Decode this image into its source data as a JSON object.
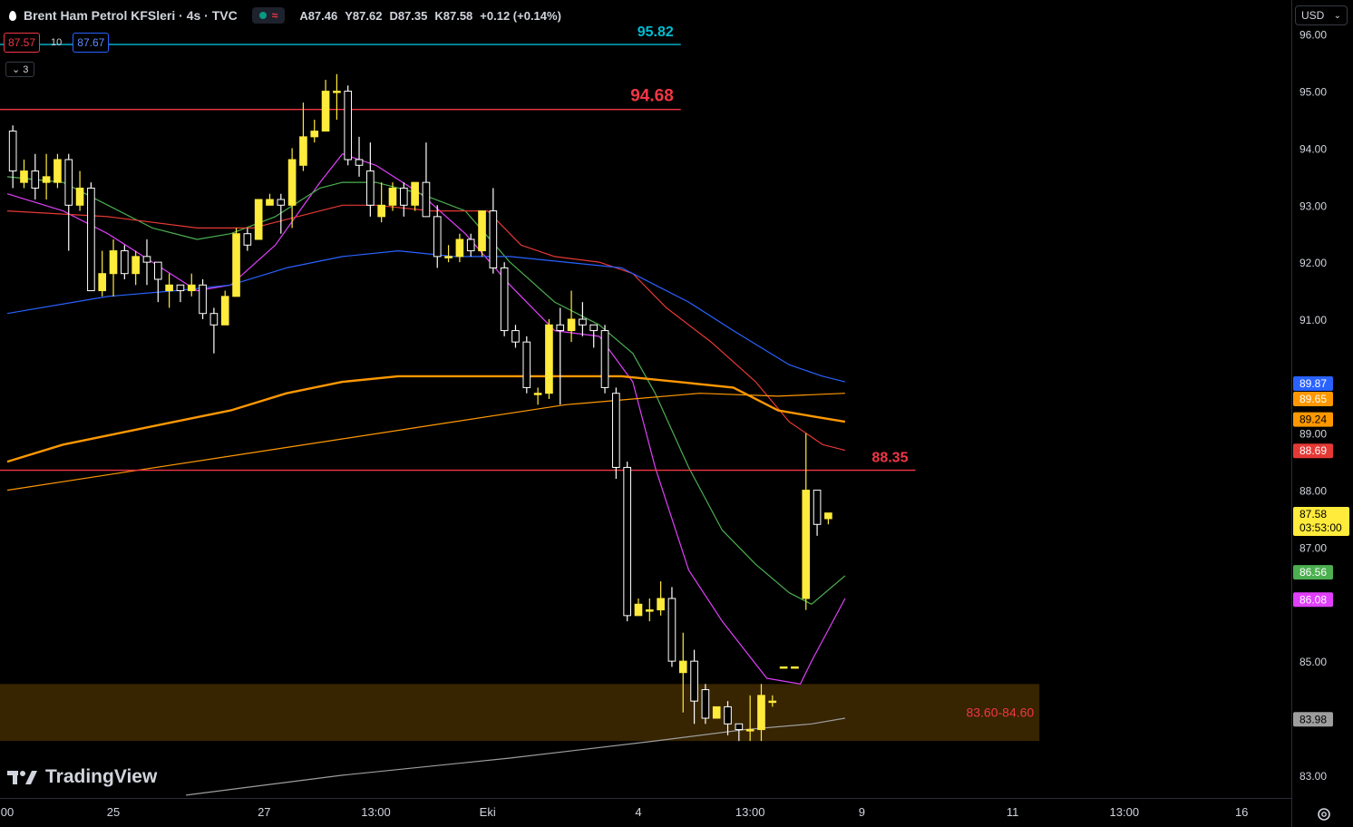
{
  "header": {
    "title": "Brent Ham Petrol KFSleri · 4s · TVC",
    "ohlc": [
      "A87.46",
      "Y87.62",
      "D87.35",
      "K87.58",
      "+0.12 (+0.14%)"
    ],
    "sell_price": "87.57",
    "quantity": "10",
    "buy_price": "87.67",
    "indicators_collapsed": "3",
    "currency": "USD"
  },
  "brand": {
    "name": "TradingView"
  },
  "colors": {
    "bull": "#ffeb3b",
    "bear": "#ffffff",
    "background": "#000000",
    "ma_magenta": "#e040fb",
    "ma_green": "#4caf50",
    "ma_red": "#e53935",
    "ma_blue": "#2962ff",
    "ma_orange": "#ff9800",
    "ma_gray": "#9e9e9e",
    "level_red": "#f23645",
    "level_cyan": "#00bcd4",
    "zone": "#3a2600"
  },
  "chart_data": {
    "type": "candlestick",
    "y_range": [
      82.6,
      96.6
    ],
    "y_ticks": [
      "96.00",
      "95.00",
      "94.00",
      "93.00",
      "92.00",
      "91.00",
      "89.00",
      "88.00",
      "87.00",
      "85.00",
      "83.00"
    ],
    "x_ticks": [
      {
        "label": "00",
        "i": 0.0
      },
      {
        "label": "25",
        "i": 9.5
      },
      {
        "label": "27",
        "i": 23.0
      },
      {
        "label": "13:00",
        "i": 33.0
      },
      {
        "label": "Eki",
        "i": 43.0
      },
      {
        "label": "4",
        "i": 56.5
      },
      {
        "label": "13:00",
        "i": 66.5
      },
      {
        "label": "9",
        "i": 76.5
      },
      {
        "label": "11",
        "i": 90.0
      },
      {
        "label": "13:00",
        "i": 100.0
      },
      {
        "label": "16",
        "i": 110.5
      }
    ],
    "x_range": [
      0,
      115.6
    ],
    "candles": [
      [
        94.3,
        93.6,
        94.4,
        93.3
      ],
      [
        93.4,
        93.6,
        93.8,
        93.3
      ],
      [
        93.6,
        93.3,
        93.9,
        93.1
      ],
      [
        93.4,
        93.5,
        93.9,
        93.1
      ],
      [
        93.4,
        93.8,
        93.9,
        93.3
      ],
      [
        93.8,
        93.0,
        93.9,
        92.2
      ],
      [
        93.0,
        93.3,
        93.6,
        92.9
      ],
      [
        93.3,
        91.5,
        93.4,
        91.5
      ],
      [
        91.5,
        91.8,
        92.2,
        91.4
      ],
      [
        91.8,
        92.2,
        92.4,
        91.4
      ],
      [
        92.2,
        91.8,
        92.3,
        91.7
      ],
      [
        91.8,
        92.1,
        92.2,
        91.6
      ],
      [
        92.1,
        92.0,
        92.4,
        91.6
      ],
      [
        92.0,
        91.7,
        92.0,
        91.3
      ],
      [
        91.5,
        91.6,
        91.8,
        91.2
      ],
      [
        91.6,
        91.5,
        91.6,
        91.3
      ],
      [
        91.5,
        91.6,
        91.8,
        91.4
      ],
      [
        91.6,
        91.1,
        91.7,
        91.0
      ],
      [
        91.1,
        90.9,
        91.2,
        90.4
      ],
      [
        90.9,
        91.4,
        91.5,
        91.0
      ],
      [
        91.4,
        92.5,
        92.6,
        91.4
      ],
      [
        92.5,
        92.3,
        92.6,
        92.2
      ],
      [
        92.4,
        93.1,
        93.1,
        92.4
      ],
      [
        93.0,
        93.1,
        93.2,
        93.0
      ],
      [
        93.1,
        93.0,
        93.2,
        92.5
      ],
      [
        93.0,
        93.8,
        94.0,
        92.6
      ],
      [
        93.7,
        94.2,
        94.8,
        93.6
      ],
      [
        94.2,
        94.3,
        94.5,
        94.1
      ],
      [
        94.3,
        95.0,
        95.2,
        94.4
      ],
      [
        95.0,
        95.0,
        95.3,
        94.5
      ],
      [
        95.0,
        93.8,
        95.1,
        93.7
      ],
      [
        93.8,
        93.7,
        94.2,
        93.5
      ],
      [
        93.6,
        93.0,
        94.1,
        92.8
      ],
      [
        92.8,
        93.0,
        93.4,
        92.7
      ],
      [
        93.0,
        93.3,
        93.4,
        92.9
      ],
      [
        93.3,
        93.0,
        93.4,
        92.8
      ],
      [
        93.0,
        93.4,
        93.4,
        92.9
      ],
      [
        93.4,
        92.8,
        94.1,
        92.8
      ],
      [
        92.8,
        92.1,
        93.0,
        91.9
      ],
      [
        92.1,
        92.1,
        92.3,
        92.0
      ],
      [
        92.1,
        92.4,
        92.5,
        92.0
      ],
      [
        92.4,
        92.2,
        92.5,
        92.1
      ],
      [
        92.2,
        92.9,
        92.9,
        92.1
      ],
      [
        92.9,
        91.9,
        93.3,
        91.8
      ],
      [
        91.9,
        90.8,
        92.0,
        90.7
      ],
      [
        90.8,
        90.6,
        90.9,
        90.5
      ],
      [
        90.6,
        89.8,
        90.7,
        89.7
      ],
      [
        89.7,
        89.7,
        89.8,
        89.5
      ],
      [
        89.7,
        90.9,
        91.0,
        89.6
      ],
      [
        90.9,
        90.8,
        91.2,
        89.5
      ],
      [
        90.8,
        91.0,
        91.5,
        90.6
      ],
      [
        91.0,
        90.9,
        91.3,
        90.7
      ],
      [
        90.9,
        90.8,
        90.9,
        90.5
      ],
      [
        90.8,
        89.8,
        90.9,
        89.7
      ],
      [
        89.7,
        88.4,
        89.8,
        88.2
      ],
      [
        88.4,
        85.8,
        88.5,
        85.7
      ],
      [
        85.8,
        86.0,
        86.1,
        85.8
      ],
      [
        85.9,
        85.9,
        86.1,
        85.7
      ],
      [
        85.9,
        86.1,
        86.4,
        85.8
      ],
      [
        86.1,
        85.0,
        86.3,
        84.9
      ],
      [
        84.8,
        85.0,
        85.5,
        84.1
      ],
      [
        85.0,
        84.3,
        85.2,
        83.9
      ],
      [
        84.5,
        84.0,
        84.6,
        83.9
      ],
      [
        84.0,
        84.2,
        84.2,
        84.0
      ],
      [
        84.2,
        83.9,
        84.3,
        83.7
      ],
      [
        83.9,
        83.8,
        83.9,
        83.6
      ],
      [
        83.8,
        83.8,
        84.4,
        83.6
      ],
      [
        83.8,
        84.4,
        84.6,
        83.6
      ],
      [
        84.3,
        84.3,
        84.4,
        84.2
      ],
      [
        84.9,
        84.9,
        84.9,
        84.9
      ],
      [
        84.9,
        84.9,
        84.9,
        84.9
      ],
      [
        86.1,
        88.0,
        89.0,
        85.9
      ],
      [
        88.0,
        87.4,
        88.0,
        87.2
      ],
      [
        87.5,
        87.6,
        87.6,
        87.4
      ]
    ],
    "moving_averages": [
      {
        "color_key": "ma_magenta",
        "width": 1.2,
        "points": [
          [
            0,
            93.2
          ],
          [
            5,
            92.9
          ],
          [
            9,
            92.5
          ],
          [
            13,
            92.0
          ],
          [
            17,
            91.5
          ],
          [
            20,
            91.6
          ],
          [
            24,
            92.3
          ],
          [
            28,
            93.4
          ],
          [
            30,
            93.9
          ],
          [
            33,
            93.7
          ],
          [
            37,
            93.2
          ],
          [
            41,
            92.5
          ],
          [
            45,
            91.6
          ],
          [
            49,
            90.8
          ],
          [
            53,
            90.7
          ],
          [
            56,
            89.9
          ],
          [
            58,
            88.4
          ],
          [
            61,
            86.6
          ],
          [
            64,
            85.7
          ],
          [
            68,
            84.7
          ],
          [
            71,
            84.6
          ],
          [
            72,
            85.0
          ],
          [
            75,
            86.1
          ]
        ]
      },
      {
        "color_key": "ma_green",
        "width": 1.2,
        "points": [
          [
            0,
            93.5
          ],
          [
            5,
            93.4
          ],
          [
            9,
            93.0
          ],
          [
            13,
            92.6
          ],
          [
            17,
            92.4
          ],
          [
            20,
            92.5
          ],
          [
            24,
            92.8
          ],
          [
            28,
            93.3
          ],
          [
            30,
            93.4
          ],
          [
            33,
            93.4
          ],
          [
            37,
            93.2
          ],
          [
            41,
            92.9
          ],
          [
            45,
            92.0
          ],
          [
            49,
            91.3
          ],
          [
            53,
            90.9
          ],
          [
            56,
            90.4
          ],
          [
            58,
            89.7
          ],
          [
            61,
            88.4
          ],
          [
            64,
            87.3
          ],
          [
            67,
            86.7
          ],
          [
            70,
            86.2
          ],
          [
            72,
            86.0
          ],
          [
            75,
            86.5
          ]
        ]
      },
      {
        "color_key": "ma_red",
        "width": 1.2,
        "points": [
          [
            0,
            92.9
          ],
          [
            9,
            92.8
          ],
          [
            17,
            92.6
          ],
          [
            22,
            92.6
          ],
          [
            28,
            92.9
          ],
          [
            30,
            93.0
          ],
          [
            33,
            93.0
          ],
          [
            38,
            92.9
          ],
          [
            43,
            92.9
          ],
          [
            46,
            92.3
          ],
          [
            49,
            92.1
          ],
          [
            53,
            92.0
          ],
          [
            56,
            91.8
          ],
          [
            59,
            91.2
          ],
          [
            63,
            90.6
          ],
          [
            67,
            89.9
          ],
          [
            70,
            89.2
          ],
          [
            73,
            88.8
          ],
          [
            75,
            88.7
          ]
        ]
      },
      {
        "color_key": "ma_blue",
        "width": 1.2,
        "points": [
          [
            0,
            91.1
          ],
          [
            9,
            91.4
          ],
          [
            15,
            91.5
          ],
          [
            20,
            91.6
          ],
          [
            25,
            91.9
          ],
          [
            30,
            92.1
          ],
          [
            35,
            92.2
          ],
          [
            40,
            92.1
          ],
          [
            45,
            92.1
          ],
          [
            50,
            92.0
          ],
          [
            55,
            91.9
          ],
          [
            58,
            91.6
          ],
          [
            61,
            91.3
          ],
          [
            65,
            90.8
          ],
          [
            70,
            90.2
          ],
          [
            73,
            90.0
          ],
          [
            75,
            89.9
          ]
        ]
      },
      {
        "color_key": "ma_orange",
        "width": 2.4,
        "points": [
          [
            0,
            88.5
          ],
          [
            5,
            88.8
          ],
          [
            10,
            89.0
          ],
          [
            15,
            89.2
          ],
          [
            20,
            89.4
          ],
          [
            25,
            89.7
          ],
          [
            30,
            89.9
          ],
          [
            35,
            90.0
          ],
          [
            40,
            90.0
          ],
          [
            45,
            90.0
          ],
          [
            50,
            90.0
          ],
          [
            55,
            90.0
          ],
          [
            60,
            89.9
          ],
          [
            65,
            89.8
          ],
          [
            69,
            89.4
          ],
          [
            72,
            89.3
          ],
          [
            75,
            89.2
          ]
        ]
      },
      {
        "color_key": "ma_orange",
        "width": 1.2,
        "points": [
          [
            0,
            88.0
          ],
          [
            10,
            88.3
          ],
          [
            20,
            88.6
          ],
          [
            30,
            88.9
          ],
          [
            40,
            89.2
          ],
          [
            50,
            89.5
          ],
          [
            56,
            89.6
          ],
          [
            62,
            89.7
          ],
          [
            69,
            89.65
          ],
          [
            75,
            89.7
          ]
        ]
      },
      {
        "color_key": "ma_gray",
        "width": 1.2,
        "points": [
          [
            16,
            82.65
          ],
          [
            30,
            83.0
          ],
          [
            45,
            83.3
          ],
          [
            58,
            83.6
          ],
          [
            66,
            83.8
          ],
          [
            72,
            83.9
          ],
          [
            75,
            84.0
          ]
        ]
      }
    ],
    "levels": [
      {
        "value": 95.82,
        "label": "95.82",
        "color_key": "level_cyan",
        "x_end": 60.3
      },
      {
        "value": 94.68,
        "label": "94.68",
        "color_key": "level_red",
        "x_end": 60.3
      },
      {
        "value": 88.35,
        "label": "88.35",
        "color_key": "level_red",
        "x_end": 81.3
      }
    ],
    "zone": {
      "low": 83.6,
      "high": 84.6,
      "label": "83.60-84.60",
      "x_end": 92.4
    },
    "price_badges": [
      {
        "value": 89.87,
        "label": "89.87",
        "bg": "#2962ff",
        "fg": "#ffffff"
      },
      {
        "value": 89.65,
        "label": "89.65",
        "bg": "#ff9800",
        "fg": "#ffffff"
      },
      {
        "value": 89.24,
        "label": "89.24",
        "bg": "#ff9800",
        "fg": "#000000"
      },
      {
        "value": 88.69,
        "label": "88.69",
        "bg": "#e53935",
        "fg": "#ffffff"
      },
      {
        "value": 87.58,
        "label": "87.58",
        "sub": "03:53:00",
        "bg": "#ffeb3b",
        "fg": "#000000"
      },
      {
        "value": 86.56,
        "label": "86.56",
        "bg": "#4caf50",
        "fg": "#ffffff"
      },
      {
        "value": 86.08,
        "label": "86.08",
        "bg": "#e040fb",
        "fg": "#ffffff"
      },
      {
        "value": 83.98,
        "label": "83.98",
        "bg": "#9e9e9e",
        "fg": "#000000"
      }
    ]
  }
}
